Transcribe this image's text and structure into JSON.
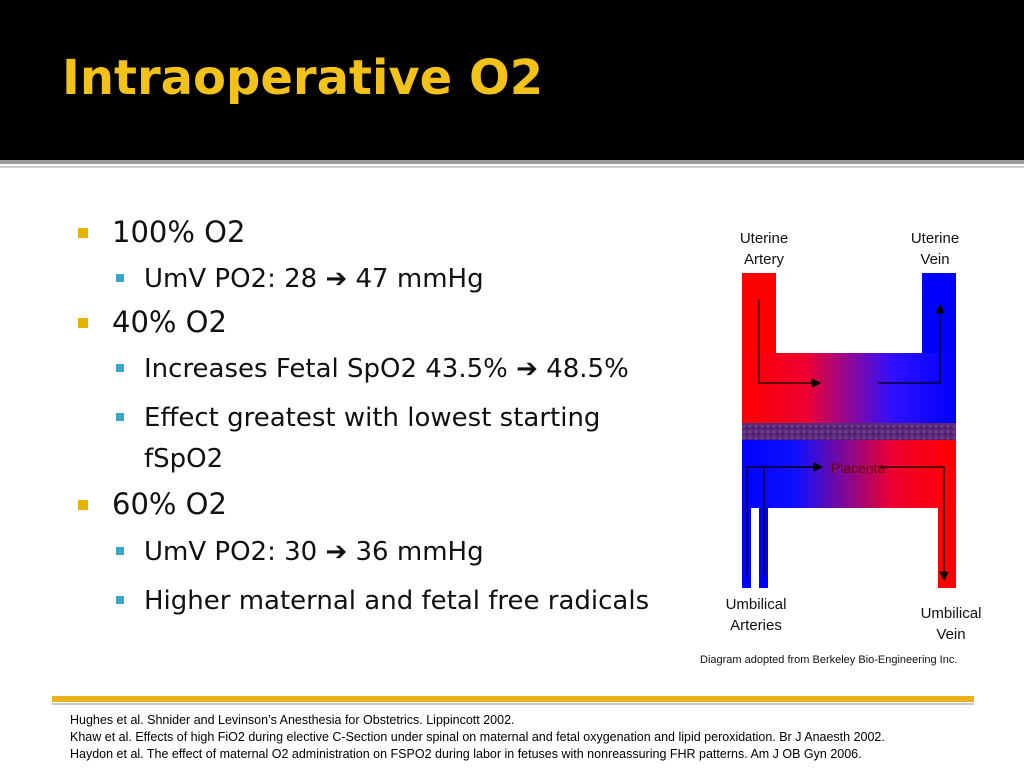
{
  "slide": {
    "title": "Intraoperative O2"
  },
  "bullets": [
    {
      "level": 1,
      "text": "100% O2"
    },
    {
      "level": 2,
      "text": "UmV PO2:  28 ➔ 47 mmHg"
    },
    {
      "level": 1,
      "text": "40% O2"
    },
    {
      "level": 2,
      "text": "Increases Fetal SpO2 43.5% ➔ 48.5%"
    },
    {
      "level": 2,
      "text": "Effect greatest with lowest starting fSpO2"
    },
    {
      "level": 1,
      "text": "60% O2"
    },
    {
      "level": 2,
      "text": "UmV PO2:  30 ➔ 36 mmHg"
    },
    {
      "level": 2,
      "text": "Higher maternal and fetal free radicals"
    }
  ],
  "diagram": {
    "labels": {
      "uterine_artery": "Uterine Artery",
      "uterine_vein": "Uterine Vein",
      "placenta": "Placenta",
      "umbilical_arteries": "Umbilical Arteries",
      "umbilical_vein": "Umbilical Vein"
    },
    "colors": {
      "oxygenated": "#ff0000",
      "deoxygenated": "#0000ff",
      "placenta_tissue": "#5b2a7a"
    },
    "caption": "Diagram adopted from Berkeley Bio-Engineering Inc."
  },
  "references": [
    "Hughes et al.  Shnider and Levinson’s Anesthesia for Obstetrics.  Lippincott 2002.",
    "Khaw et al.  Effects of high FiO2 during elective C-Section under spinal on maternal and fetal oxygenation and lipid peroxidation.  Br J Anaesth 2002.",
    "Haydon et al. The effect of maternal O2 administration on FSPO2 during labor in fetuses with nonreassuring FHR patterns.  Am J OB Gyn 2006."
  ]
}
